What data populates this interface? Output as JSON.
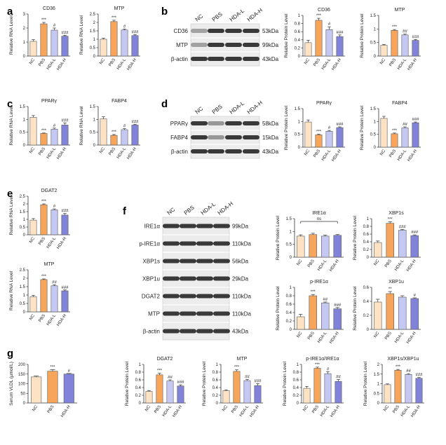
{
  "colors": {
    "nc": "#FDE2C4",
    "pbs": "#F7A55A",
    "hdal": "#C5C8F2",
    "hdah": "#8183D9",
    "edge": "#5a5a5a"
  },
  "panel_labels": {
    "a": "a",
    "b": "b",
    "c": "c",
    "d": "d",
    "e": "e",
    "f": "f",
    "g": "g"
  },
  "blots": [
    {
      "id": "b",
      "top_labels": [
        "NC",
        "PBS",
        "HDA-L",
        "HDA-H"
      ],
      "rows": [
        {
          "name": "CD36",
          "kda": "53kDa"
        },
        {
          "name": "MTP",
          "kda": "99kDa"
        },
        {
          "name": "β-actin",
          "kda": "43kDa"
        }
      ]
    },
    {
      "id": "d",
      "top_labels": [
        "NC",
        "PBS",
        "HDA-L",
        "HDA-H"
      ],
      "rows": [
        {
          "name": "PPARγ",
          "kda": "58kDa"
        },
        {
          "name": "FABP4",
          "kda": "15kDa"
        },
        {
          "name": "β-actin",
          "kda": "43kDa"
        }
      ]
    },
    {
      "id": "f",
      "top_labels": [
        "NC",
        "PBS",
        "HDA-L",
        "HDA-H"
      ],
      "rows": [
        {
          "name": "IRE1α",
          "kda": "99kDa"
        },
        {
          "name": "p-IRE1α",
          "kda": "110kDa"
        },
        {
          "name": "XBP1s",
          "kda": "56kDa"
        },
        {
          "name": "XBP1u",
          "kda": "29kDa"
        },
        {
          "name": "DGAT2",
          "kda": "110kDa"
        },
        {
          "name": "MTP",
          "kda": "110kDa"
        },
        {
          "name": "β-actin",
          "kda": "43kDa"
        }
      ]
    }
  ],
  "chart_data": [
    {
      "type": "bar",
      "title": "CD36",
      "ylabel": "Relative RNA Level",
      "categories": [
        "NC",
        "PBS",
        "HDA-L",
        "HDA-H"
      ],
      "values": [
        1.05,
        2.3,
        1.85,
        1.42
      ],
      "errors": [
        0.12,
        0.1,
        0.15,
        0.06
      ],
      "ylim": [
        0,
        3
      ],
      "ticks": [
        0,
        1,
        2,
        3
      ],
      "marks": [
        "",
        "***",
        "#",
        "###"
      ]
    },
    {
      "type": "bar",
      "title": "MTP",
      "ylabel": "Relative RNA Level",
      "categories": [
        "NC",
        "PBS",
        "HDA-L",
        "HDA-H"
      ],
      "values": [
        1.0,
        2.05,
        1.55,
        1.22
      ],
      "errors": [
        0.06,
        0.08,
        0.06,
        0.05
      ],
      "ylim": [
        0,
        2.5
      ],
      "ticks": [
        0,
        0.5,
        1,
        1.5,
        2,
        2.5
      ],
      "marks": [
        "",
        "***",
        "#",
        "###"
      ]
    },
    {
      "type": "bar",
      "title": "CD36",
      "ylabel": "Relative Protein Level",
      "categories": [
        "NC",
        "PBS",
        "HDA-L",
        "HDA-H"
      ],
      "values": [
        0.33,
        0.88,
        0.65,
        0.48
      ],
      "errors": [
        0.06,
        0.05,
        0.07,
        0.04
      ],
      "ylim": [
        0,
        1.0
      ],
      "ticks": [
        0,
        0.2,
        0.4,
        0.6,
        0.8,
        1.0
      ],
      "marks": [
        "",
        "***",
        "#",
        "###"
      ]
    },
    {
      "type": "bar",
      "title": "MTP",
      "ylabel": "Relative Protein Level",
      "categories": [
        "NC",
        "PBS",
        "HDA-L",
        "HDA-H"
      ],
      "values": [
        0.4,
        0.95,
        0.78,
        0.58
      ],
      "errors": [
        0.03,
        0.03,
        0.03,
        0.03
      ],
      "ylim": [
        0,
        1.5
      ],
      "ticks": [
        0,
        0.5,
        1.0,
        1.5
      ],
      "marks": [
        "",
        "***",
        "##",
        "###"
      ]
    },
    {
      "type": "bar",
      "title": "PPARγ",
      "ylabel": "Relative RNA Level",
      "categories": [
        "NC",
        "PBS",
        "HDA-L",
        "HDA-H"
      ],
      "values": [
        1.08,
        0.45,
        0.62,
        0.78
      ],
      "errors": [
        0.07,
        0.02,
        0.04,
        0.08
      ],
      "ylim": [
        0,
        1.5
      ],
      "ticks": [
        0,
        0.5,
        1.0,
        1.5
      ],
      "marks": [
        "",
        "***",
        "#",
        "###"
      ]
    },
    {
      "type": "bar",
      "title": "FABP4",
      "ylabel": "Relative RNA Level",
      "categories": [
        "NC",
        "PBS",
        "HDA-L",
        "HDA-H"
      ],
      "values": [
        1.02,
        0.38,
        0.6,
        0.78
      ],
      "errors": [
        0.08,
        0.03,
        0.04,
        0.03
      ],
      "ylim": [
        0,
        1.5
      ],
      "ticks": [
        0,
        0.5,
        1.0,
        1.5
      ],
      "marks": [
        "",
        "***",
        "#",
        "###"
      ]
    },
    {
      "type": "bar",
      "title": "PPARγ",
      "ylabel": "Relative Protein Level",
      "categories": [
        "NC",
        "PBS",
        "HDA-L",
        "HDA-H"
      ],
      "values": [
        0.98,
        0.48,
        0.62,
        0.76
      ],
      "errors": [
        0.08,
        0.03,
        0.03,
        0.03
      ],
      "ylim": [
        0,
        1.5
      ],
      "ticks": [
        0,
        0.5,
        1.0,
        1.5
      ],
      "marks": [
        "",
        "***",
        "#",
        "###"
      ]
    },
    {
      "type": "bar",
      "title": "FABP4",
      "ylabel": "Relative Protein Level",
      "categories": [
        "NC",
        "PBS",
        "HDA-L",
        "HDA-H"
      ],
      "values": [
        1.12,
        0.52,
        0.75,
        0.95
      ],
      "errors": [
        0.08,
        0.03,
        0.04,
        0.03
      ],
      "ylim": [
        0,
        1.5
      ],
      "ticks": [
        0,
        0.5,
        1.0,
        1.5
      ],
      "marks": [
        "",
        "***",
        "##",
        "###"
      ]
    },
    {
      "type": "bar",
      "title": "DGAT2",
      "ylabel": "Relative RNA Level",
      "categories": [
        "NC",
        "PBS",
        "HDA-L",
        "HDA-H"
      ],
      "values": [
        0.95,
        1.95,
        1.62,
        1.28
      ],
      "errors": [
        0.1,
        0.05,
        0.06,
        0.1
      ],
      "ylim": [
        0,
        2.5
      ],
      "ticks": [
        0,
        0.5,
        1.0,
        1.5,
        2.0,
        2.5
      ],
      "marks": [
        "",
        "***",
        "#",
        "###"
      ]
    },
    {
      "type": "bar",
      "title": "MTP",
      "ylabel": "Relative RNA Level",
      "categories": [
        "NC",
        "PBS",
        "HDA-L",
        "HDA-H"
      ],
      "values": [
        0.9,
        1.92,
        1.55,
        1.25
      ],
      "errors": [
        0.08,
        0.04,
        0.06,
        0.05
      ],
      "ylim": [
        0,
        2.5
      ],
      "ticks": [
        0,
        0.5,
        1.0,
        1.5,
        2.0,
        2.5
      ],
      "marks": [
        "",
        "***",
        "##",
        "###"
      ]
    },
    {
      "type": "bar",
      "title": "IRE1α",
      "ylabel": "Relative Protein Level",
      "categories": [
        "NC",
        "PBS",
        "HDA-L",
        "HDA-H"
      ],
      "values": [
        0.82,
        0.88,
        0.82,
        0.85
      ],
      "errors": [
        0.05,
        0.05,
        0.04,
        0.03
      ],
      "ylim": [
        0,
        1.5
      ],
      "ticks": [
        0,
        0.5,
        1.0,
        1.5
      ],
      "marks": [
        "",
        "",
        "",
        ""
      ],
      "bracket": "ns"
    },
    {
      "type": "bar",
      "title": "XBP1s",
      "ylabel": "Relative Protein Level",
      "categories": [
        "NC",
        "PBS",
        "HDA-L",
        "HDA-H"
      ],
      "values": [
        0.38,
        0.88,
        0.7,
        0.56
      ],
      "errors": [
        0.04,
        0.04,
        0.02,
        0.02
      ],
      "ylim": [
        0,
        1.0
      ],
      "ticks": [
        0,
        0.2,
        0.4,
        0.6,
        0.8,
        1.0
      ],
      "marks": [
        "",
        "***",
        "###",
        "###"
      ]
    },
    {
      "type": "bar",
      "title": "p-IRE1α",
      "ylabel": "Relative Protein Level",
      "categories": [
        "NC",
        "PBS",
        "HDA-L",
        "HDA-H"
      ],
      "values": [
        0.3,
        0.8,
        0.63,
        0.49
      ],
      "errors": [
        0.06,
        0.03,
        0.02,
        0.03
      ],
      "ylim": [
        0,
        1.0
      ],
      "ticks": [
        0,
        0.2,
        0.4,
        0.6,
        0.8,
        1.0
      ],
      "marks": [
        "",
        "***",
        "##",
        "###"
      ]
    },
    {
      "type": "bar",
      "title": "XBP1u",
      "ylabel": "Relative Protein Level",
      "categories": [
        "NC",
        "PBS",
        "HDA-L",
        "HDA-H"
      ],
      "values": [
        0.39,
        0.51,
        0.46,
        0.44
      ],
      "errors": [
        0.04,
        0.03,
        0.02,
        0.01
      ],
      "ylim": [
        0,
        0.6
      ],
      "ticks": [
        0,
        0.2,
        0.4,
        0.6
      ],
      "marks": [
        "",
        "**",
        "",
        "#"
      ]
    },
    {
      "type": "bar",
      "title": "",
      "ylabel": "Serum VLDL (μmol/L)",
      "categories": [
        "NC",
        "PBS",
        "HDA-H"
      ],
      "values": [
        135,
        165,
        150
      ],
      "errors": [
        5,
        8,
        3
      ],
      "ylim": [
        0,
        200
      ],
      "ticks": [
        0,
        50,
        100,
        150,
        200
      ],
      "marks": [
        "",
        "***",
        "#"
      ]
    },
    {
      "type": "bar",
      "title": "DGAT2",
      "ylabel": "Relative Protein Level",
      "categories": [
        "NC",
        "PBS",
        "HDA-L",
        "HDA-H"
      ],
      "values": [
        0.3,
        0.73,
        0.57,
        0.44
      ],
      "errors": [
        0.02,
        0.04,
        0.03,
        0.03
      ],
      "ylim": [
        0,
        1.0
      ],
      "ticks": [
        0,
        0.2,
        0.4,
        0.6,
        0.8,
        1.0
      ],
      "marks": [
        "",
        "***",
        "##",
        "###"
      ]
    },
    {
      "type": "bar",
      "title": "MTP",
      "ylabel": "Relative Protein Level",
      "categories": [
        "NC",
        "PBS",
        "HDA-L",
        "HDA-H"
      ],
      "values": [
        0.32,
        0.82,
        0.58,
        0.45
      ],
      "errors": [
        0.02,
        0.04,
        0.03,
        0.05
      ],
      "ylim": [
        0,
        1.0
      ],
      "ticks": [
        0,
        0.2,
        0.4,
        0.6,
        0.8,
        1.0
      ],
      "marks": [
        "",
        "***",
        "##",
        "###"
      ]
    },
    {
      "type": "bar",
      "title": "p-IRE1α/IRE1α",
      "ylabel": "Relative Protein Level",
      "categories": [
        "NC",
        "PBS",
        "HDA-L",
        "HDA-H"
      ],
      "values": [
        0.38,
        0.9,
        0.76,
        0.56
      ],
      "errors": [
        0.05,
        0.03,
        0.05,
        0.05
      ],
      "ylim": [
        0,
        1.0
      ],
      "ticks": [
        0,
        0.2,
        0.4,
        0.6,
        0.8,
        1.0
      ],
      "marks": [
        "",
        "***",
        "#",
        "##"
      ]
    },
    {
      "type": "bar",
      "title": "XBP1s/XBP1u",
      "ylabel": "Relative Protein Level",
      "categories": [
        "NC",
        "PBS",
        "HDA-L",
        "HDA-H"
      ],
      "values": [
        0.95,
        1.7,
        1.48,
        1.28
      ],
      "errors": [
        0.04,
        0.04,
        0.04,
        0.04
      ],
      "ylim": [
        0,
        2.0
      ],
      "ticks": [
        0,
        0.5,
        1.0,
        1.5,
        2.0
      ],
      "marks": [
        "",
        "***",
        "##",
        "###"
      ]
    }
  ]
}
